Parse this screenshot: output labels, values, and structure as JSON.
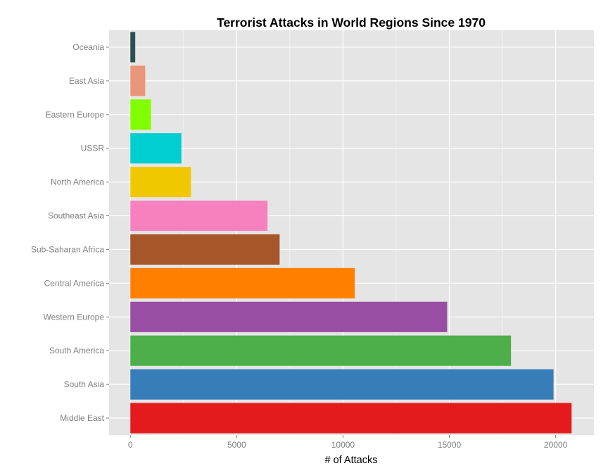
{
  "chart_data": {
    "type": "bar",
    "orientation": "horizontal",
    "title": "Terrorist Attacks in World Regions Since 1970",
    "xlabel": "# of Attacks",
    "ylabel": "",
    "xlim": [
      -1000,
      21800
    ],
    "x_ticks": [
      0,
      5000,
      10000,
      15000,
      20000
    ],
    "grid": true,
    "legend": "none",
    "categories": [
      "Middle East",
      "South Asia",
      "South America",
      "Western Europe",
      "Central America",
      "Sub-Saharan Africa",
      "Southeast Asia",
      "North America",
      "USSR",
      "Eastern Europe",
      "East Asia",
      "Oceania"
    ],
    "values": [
      20750,
      19900,
      17900,
      14900,
      10550,
      7020,
      6450,
      2850,
      2400,
      970,
      700,
      230
    ],
    "colors": [
      "#e41a1c",
      "#377eb8",
      "#4daf4a",
      "#984ea3",
      "#ff7f00",
      "#a65628",
      "#f781bf",
      "#f0c800",
      "#00ced1",
      "#7fff00",
      "#e9967a",
      "#2f4f4f"
    ],
    "panel_color": "#e5e5e5",
    "grid_color": "#ffffff"
  }
}
